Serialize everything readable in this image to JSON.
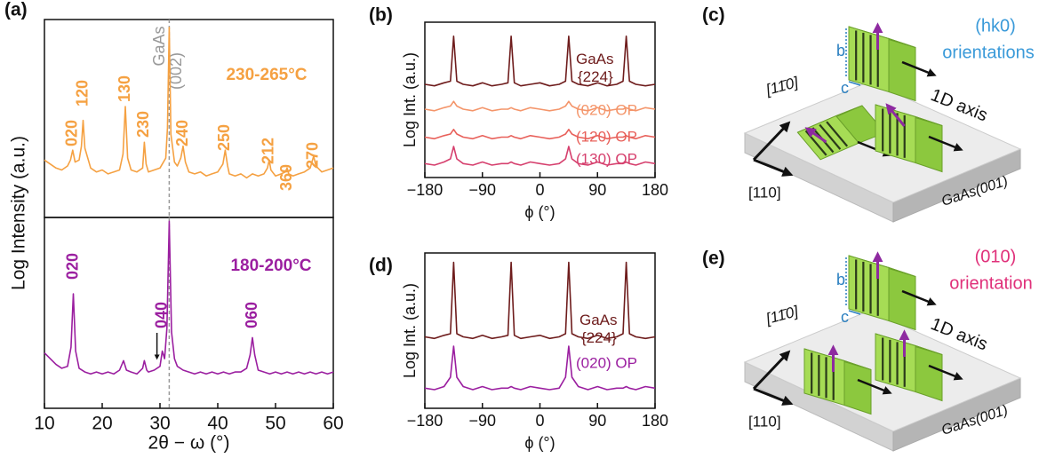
{
  "chart_data": [
    {
      "type": "line",
      "label": "(a)",
      "ylabel": "Log Intensity (a.u.)",
      "xlim": [
        10,
        60
      ],
      "ylim": [
        0,
        10
      ],
      "vline": 31.6,
      "vline_label": [
        "GaAs",
        "(002)"
      ],
      "series": [
        {
          "name": "230-265°C",
          "color": "#f5a142",
          "x": [
            10,
            11,
            12,
            13,
            14,
            14.5,
            14.9,
            15.3,
            16,
            16.4,
            16.7,
            17,
            18,
            19,
            20,
            21,
            22,
            23,
            23.6,
            24,
            24.4,
            25,
            26,
            27,
            27.3,
            27.6,
            28,
            29,
            30,
            31,
            31.3,
            31.6,
            31.9,
            32.5,
            33,
            33.6,
            34,
            34.4,
            35,
            36,
            37,
            38,
            39,
            40,
            40.9,
            41.3,
            41.7,
            42,
            43,
            44,
            45,
            46,
            47,
            48,
            48.6,
            48.9,
            49.2,
            50,
            51,
            51.7,
            52,
            52.3,
            53,
            54,
            55,
            56,
            56.6,
            57,
            58,
            59,
            60
          ],
          "values": [
            2.9,
            2.7,
            2.5,
            2.4,
            2.6,
            2.9,
            3.4,
            2.8,
            2.9,
            3.6,
            4.9,
            3.5,
            2.5,
            2.3,
            2.4,
            2.2,
            2.3,
            2.4,
            3.2,
            5.6,
            3.0,
            2.4,
            2.3,
            2.5,
            3.8,
            2.7,
            2.3,
            2.4,
            2.5,
            3.0,
            4.5,
            9.6,
            4.2,
            2.8,
            2.6,
            3.0,
            3.6,
            2.8,
            2.3,
            2.2,
            2.3,
            2.1,
            2.2,
            2.3,
            2.7,
            3.4,
            2.6,
            2.2,
            2.1,
            2.2,
            2.0,
            2.2,
            2.1,
            2.2,
            2.5,
            2.9,
            2.4,
            2.1,
            2.2,
            2.3,
            2.5,
            2.2,
            2.1,
            2.2,
            2.3,
            2.5,
            3.1,
            2.6,
            2.3,
            2.4,
            2.5
          ]
        }
      ],
      "annotations": [
        {
          "text": "020",
          "x": 14.9
        },
        {
          "text": "120",
          "x": 16.7
        },
        {
          "text": "130",
          "x": 24
        },
        {
          "text": "230",
          "x": 27.3
        },
        {
          "text": "240",
          "x": 34
        },
        {
          "text": "250",
          "x": 41.3
        },
        {
          "text": "212",
          "x": 48.9
        },
        {
          "text": "360",
          "x": 52
        },
        {
          "text": "270",
          "x": 56.6
        }
      ]
    },
    {
      "type": "line",
      "xlabel": "2θ − ω (°)",
      "xlim": [
        10,
        60
      ],
      "ylim": [
        0,
        10
      ],
      "xticks": [
        10,
        20,
        30,
        40,
        50,
        60
      ],
      "vline": 31.6,
      "series": [
        {
          "name": "180-200°C",
          "color": "#9b1fa0",
          "x": [
            10,
            11,
            12,
            13,
            14,
            14.6,
            15,
            15.4,
            16,
            17,
            18,
            19,
            20,
            21,
            22,
            23,
            23.7,
            24.2,
            25,
            26,
            27,
            27.3,
            27.7,
            28,
            29,
            30,
            30.4,
            30.8,
            31.2,
            31.6,
            32,
            32.5,
            33,
            34,
            35,
            36,
            37,
            38,
            39,
            40,
            41,
            42,
            43,
            44,
            45,
            45.6,
            46,
            46.4,
            47,
            48,
            49,
            50,
            51,
            52,
            53,
            54,
            55,
            56,
            57,
            58,
            59,
            60
          ],
          "values": [
            2.9,
            2.6,
            2.3,
            2.1,
            2.2,
            3.2,
            6.0,
            3.0,
            2.1,
            1.9,
            1.8,
            1.9,
            1.8,
            1.9,
            1.8,
            2.0,
            2.5,
            2.0,
            1.9,
            1.8,
            2.1,
            2.5,
            2.0,
            1.9,
            2.0,
            2.2,
            3.0,
            2.6,
            4.2,
            9.8,
            4.0,
            2.6,
            2.2,
            2.0,
            1.9,
            1.8,
            1.9,
            1.8,
            1.9,
            1.8,
            1.9,
            1.8,
            1.9,
            1.9,
            2.1,
            2.8,
            3.7,
            2.8,
            2.0,
            1.9,
            1.8,
            1.9,
            1.8,
            1.9,
            1.8,
            1.9,
            1.8,
            1.9,
            1.8,
            1.9,
            1.8,
            1.9
          ]
        }
      ],
      "annotations": [
        {
          "text": "020",
          "x": 15
        },
        {
          "text": "040",
          "x": 30.4
        },
        {
          "text": "060",
          "x": 46
        }
      ]
    },
    {
      "type": "line",
      "label": "(b)",
      "ylabel": "Log Int. (a.u.)",
      "xlabel": "ϕ (°)",
      "xlim": [
        -180,
        180
      ],
      "ylim": [
        0,
        10
      ],
      "xticks": [
        {
          "value": -180,
          "label": "−180"
        },
        {
          "value": -90,
          "label": "−90"
        },
        0,
        90,
        180
      ],
      "x": [
        -180,
        -165,
        -150,
        -140,
        -135,
        -130,
        -120,
        -105,
        -90,
        -75,
        -60,
        -50,
        -45,
        -40,
        -30,
        -15,
        0,
        15,
        30,
        40,
        45,
        50,
        60,
        75,
        90,
        105,
        120,
        130,
        135,
        140,
        150,
        165,
        180
      ],
      "series": [
        {
          "name": "GaAs {224}",
          "color": "#6e1c1c",
          "values": [
            6.0,
            5.9,
            6.1,
            6.2,
            9.1,
            6.2,
            6.0,
            5.9,
            6.1,
            5.9,
            6.0,
            6.1,
            9.1,
            6.1,
            5.9,
            6.0,
            6.1,
            5.9,
            6.0,
            6.2,
            9.1,
            6.2,
            6.0,
            5.9,
            6.1,
            5.9,
            6.0,
            6.2,
            9.1,
            6.2,
            6.0,
            5.9,
            6.0
          ]
        },
        {
          "name": "(020) OP",
          "color": "#f4956a",
          "values": [
            4.4,
            4.3,
            4.5,
            4.6,
            4.9,
            4.6,
            4.4,
            4.3,
            4.5,
            4.3,
            4.4,
            4.4,
            4.5,
            4.4,
            4.3,
            4.5,
            4.4,
            4.3,
            4.4,
            4.6,
            4.9,
            4.6,
            4.4,
            4.3,
            4.5,
            4.3,
            4.4,
            4.4,
            4.5,
            4.4,
            4.3,
            4.5,
            4.4
          ]
        },
        {
          "name": "(120) OP",
          "color": "#e8605a",
          "values": [
            2.6,
            2.5,
            2.7,
            2.8,
            3.1,
            2.8,
            2.6,
            2.5,
            2.7,
            2.5,
            2.6,
            2.6,
            2.7,
            2.6,
            2.5,
            2.7,
            2.6,
            2.5,
            2.6,
            2.8,
            3.1,
            2.8,
            2.6,
            2.5,
            2.7,
            2.5,
            2.6,
            2.6,
            2.7,
            2.6,
            2.5,
            2.7,
            2.6
          ]
        },
        {
          "name": "(130) OP",
          "color": "#d6406e",
          "values": [
            0.9,
            0.8,
            1.0,
            1.2,
            2.0,
            1.2,
            0.9,
            0.8,
            1.0,
            0.8,
            0.9,
            0.9,
            1.0,
            0.9,
            0.8,
            1.0,
            0.9,
            0.8,
            0.9,
            1.2,
            2.0,
            1.2,
            0.9,
            0.8,
            1.0,
            0.8,
            0.9,
            0.9,
            1.0,
            0.9,
            0.8,
            1.0,
            0.9
          ]
        }
      ]
    },
    {
      "type": "line",
      "label": "(d)",
      "ylabel": "Log Int. (a.u.)",
      "xlabel": "ϕ (°)",
      "xlim": [
        -180,
        180
      ],
      "ylim": [
        0,
        10
      ],
      "xticks": [
        {
          "value": -180,
          "label": "−180"
        },
        {
          "value": -90,
          "label": "−90"
        },
        0,
        90,
        180
      ],
      "x": [
        -180,
        -165,
        -150,
        -140,
        -135,
        -130,
        -120,
        -105,
        -90,
        -75,
        -60,
        -50,
        -45,
        -40,
        -30,
        -15,
        0,
        15,
        30,
        40,
        45,
        50,
        60,
        75,
        90,
        105,
        120,
        130,
        135,
        140,
        150,
        165,
        180
      ],
      "series": [
        {
          "name": "GaAs {224}",
          "color": "#6e1c1c",
          "values": [
            4.6,
            4.5,
            4.7,
            4.8,
            9.4,
            4.8,
            4.6,
            4.5,
            4.7,
            4.5,
            4.6,
            4.7,
            9.4,
            4.7,
            4.5,
            4.6,
            4.7,
            4.5,
            4.6,
            4.8,
            9.4,
            4.8,
            4.6,
            4.5,
            4.7,
            4.5,
            4.6,
            4.8,
            9.4,
            4.8,
            4.6,
            4.5,
            4.6
          ]
        },
        {
          "name": "(020) OP",
          "color": "#9b1fa0",
          "values": [
            1.3,
            1.2,
            1.4,
            2.0,
            4.0,
            2.0,
            1.4,
            1.2,
            1.4,
            1.2,
            1.3,
            1.3,
            1.4,
            1.3,
            1.2,
            1.4,
            1.3,
            1.2,
            1.3,
            2.0,
            4.0,
            2.0,
            1.4,
            1.2,
            1.4,
            1.2,
            1.3,
            1.3,
            1.4,
            1.3,
            1.2,
            1.4,
            1.3
          ]
        }
      ]
    }
  ],
  "diagrams": [
    {
      "label": "(c)",
      "heading": [
        "(hk0)",
        "orientations"
      ],
      "b": "b",
      "c": "c",
      "direction_1": "[11̄0]",
      "axis": "1D axis",
      "direction_2": "[110]",
      "substrate": "GaAs(001)"
    },
    {
      "label": "(e)",
      "heading": [
        "(010)",
        "orientation"
      ],
      "b": "b",
      "c": "c",
      "direction_1": "[11̄0]",
      "axis": "1D axis",
      "direction_2": "[110]",
      "substrate": "GaAs(001)"
    }
  ]
}
